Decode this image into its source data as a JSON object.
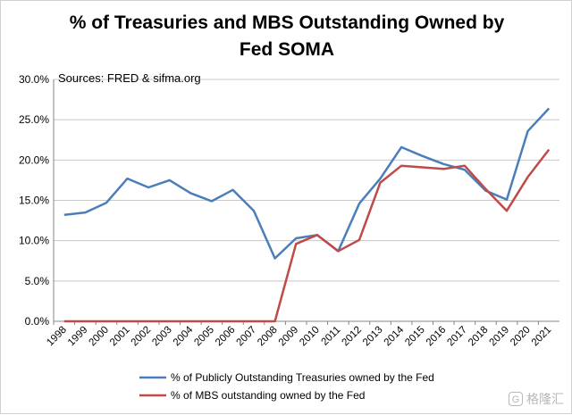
{
  "chart_data": {
    "type": "line",
    "title": [
      "% of Treasuries and MBS Outstanding Owned by",
      "Fed SOMA"
    ],
    "annotation": "Sources: FRED & sifma.org",
    "categories": [
      "1998",
      "1999",
      "2000",
      "2001",
      "2002",
      "2003",
      "2004",
      "2005",
      "2006",
      "2007",
      "2008",
      "2009",
      "2010",
      "2011",
      "2012",
      "2013",
      "2014",
      "2015",
      "2016",
      "2017",
      "2018",
      "2019",
      "2020",
      "2021"
    ],
    "y_ticks": [
      "0.0%",
      "5.0%",
      "10.0%",
      "15.0%",
      "20.0%",
      "25.0%",
      "30.0%"
    ],
    "ylim": [
      0,
      30
    ],
    "grid": "horizontal",
    "legend_position": "bottom",
    "series": [
      {
        "name": "% of Publicly Outstanding Treasuries owned by the Fed",
        "color": "#4a7ebb",
        "values": [
          13.2,
          13.5,
          14.7,
          17.7,
          16.6,
          17.5,
          15.9,
          14.9,
          16.3,
          13.7,
          7.8,
          10.3,
          10.7,
          8.7,
          14.6,
          17.7,
          21.6,
          20.5,
          19.5,
          18.8,
          16.2,
          15.1,
          23.6,
          26.4
        ]
      },
      {
        "name": "% of MBS outstanding owned by the Fed",
        "color": "#be4b48",
        "values": [
          0,
          0,
          0,
          0,
          0,
          0,
          0,
          0,
          0,
          0,
          0,
          9.6,
          10.7,
          8.7,
          10.1,
          17.2,
          19.3,
          19.1,
          18.9,
          19.3,
          16.4,
          13.7,
          17.9,
          21.3
        ]
      }
    ]
  },
  "watermark": {
    "icon": "G",
    "text": "格隆汇"
  }
}
